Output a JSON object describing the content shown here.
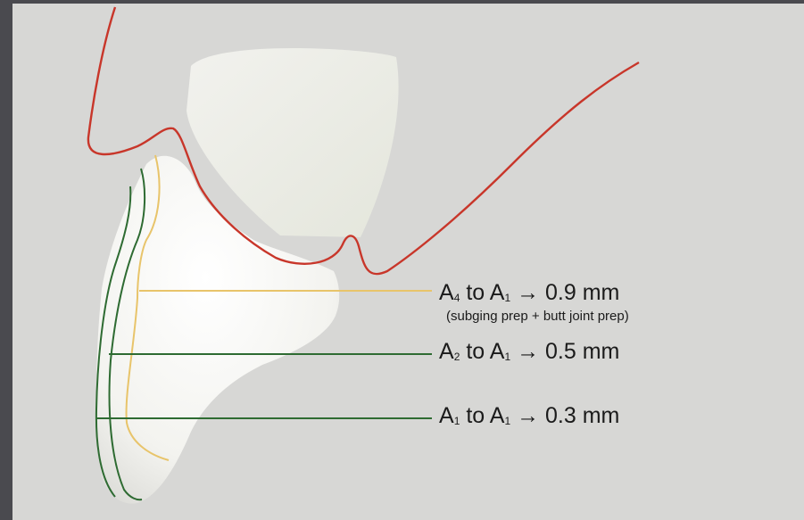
{
  "labels": {
    "a4": {
      "from": "A",
      "from_sub": "4",
      "to": "A",
      "to_sub": "1",
      "arrow": "→",
      "value": "0.9 mm"
    },
    "a4_note": "(subging prep + butt joint prep)",
    "a2": {
      "from": "A",
      "from_sub": "2",
      "to": "A",
      "to_sub": "1",
      "arrow": "→",
      "value": "0.5 mm"
    },
    "a1": {
      "from": "A",
      "from_sub": "1",
      "to": "A",
      "to_sub": "1",
      "arrow": "→",
      "value": "0.3 mm"
    }
  },
  "colors": {
    "gingiva_line": "#c8362a",
    "a4_line": "#e8c46a",
    "a2_line": "#2e6b32",
    "a1_line": "#2e6b32",
    "tooth": "#f7f7f4",
    "background": "#d7d7d5",
    "border": "#4a4a4f"
  }
}
